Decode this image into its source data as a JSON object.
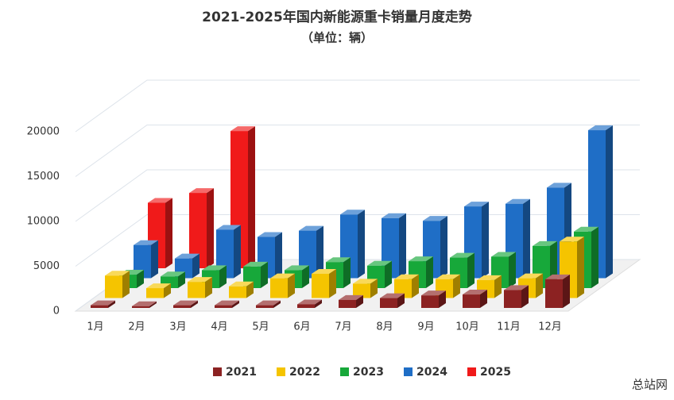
{
  "chart_data": {
    "type": "bar3d",
    "title": "2021-2025年国内新能源重卡销量月度走势",
    "subtitle": "（单位：辆）",
    "categories": [
      "1月",
      "2月",
      "3月",
      "4月",
      "5月",
      "6月",
      "7月",
      "8月",
      "9月",
      "10月",
      "11月",
      "12月"
    ],
    "series": [
      {
        "name": "2021",
        "color": "#8c2222",
        "values": [
          300,
          200,
          300,
          300,
          300,
          400,
          900,
          1100,
          1400,
          1500,
          2000,
          3200
        ]
      },
      {
        "name": "2022",
        "color": "#f5c400",
        "values": [
          2500,
          1100,
          1800,
          1300,
          2200,
          2700,
          1600,
          2100,
          2100,
          2000,
          2200,
          6300
        ]
      },
      {
        "name": "2023",
        "color": "#17a83a",
        "values": [
          1500,
          1300,
          2000,
          2400,
          2000,
          2900,
          2500,
          3000,
          3400,
          3500,
          4700,
          6300
        ]
      },
      {
        "name": "2024",
        "color": "#1f6ec6",
        "values": [
          3700,
          2200,
          5400,
          4600,
          5300,
          7100,
          6700,
          6400,
          8000,
          8300,
          10100,
          16500
        ]
      },
      {
        "name": "2025",
        "color": "#f01a1a",
        "values": [
          7300,
          8400,
          15300,
          null,
          null,
          null,
          null,
          null,
          null,
          null,
          null,
          null
        ]
      }
    ],
    "ylim": [
      0,
      20000
    ],
    "yticks": [
      0,
      5000,
      10000,
      15000,
      20000
    ],
    "grid": true,
    "watermark": "总站网"
  }
}
